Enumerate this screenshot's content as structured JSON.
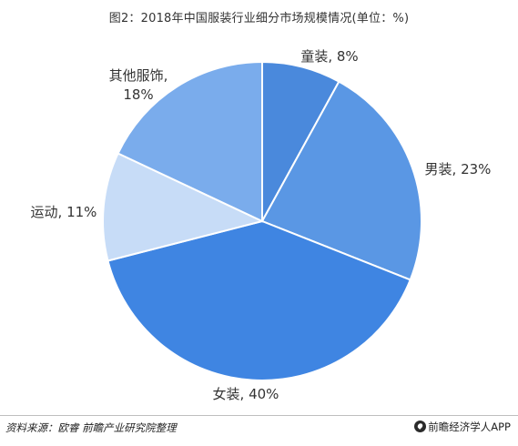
{
  "title": "图2：2018年中国服装行业细分市场规模情况(单位：%)",
  "chart_data": {
    "type": "pie",
    "title": "图2：2018年中国服装行业细分市场规模情况(单位：%)",
    "unit": "%",
    "categories": [
      "童装",
      "男装",
      "女装",
      "运动",
      "其他服饰"
    ],
    "values": [
      8,
      23,
      40,
      11,
      18
    ],
    "labels": [
      "童装, 8%",
      "男装, 23%",
      "女装, 40%",
      "运动, 11%",
      "其他服饰,"
    ],
    "label_extra": [
      "",
      "",
      "",
      "",
      "18%"
    ],
    "colors": [
      "#4a89dc",
      "#5a97e4",
      "#3f85e2",
      "#c7dcf7",
      "#7aacec"
    ],
    "start": "12 o'clock",
    "direction": "clockwise",
    "legend": "none"
  },
  "footer": {
    "source": "资料来源：欧睿 前瞻产业研究院整理",
    "brand": "前瞻经济学人APP"
  }
}
